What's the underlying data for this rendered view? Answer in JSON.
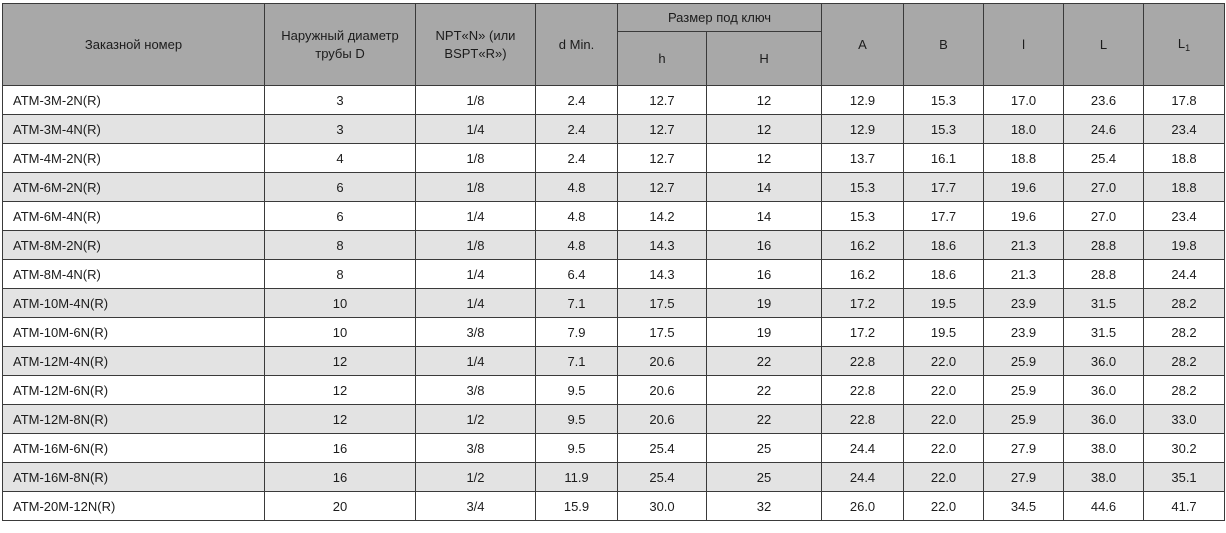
{
  "colors": {
    "header_bg": "#a8a8a8",
    "stripe_bg": "#e3e3e3",
    "row_bg": "#ffffff",
    "border_color": "#3a3a3a",
    "text_color": "#1c1c1c"
  },
  "table": {
    "header": {
      "order_number": "Заказной номер",
      "outer_diameter": "Наружный диаметр трубы D",
      "npt": "NPT«N» (или BSPT«R»)",
      "d_min": "d Min.",
      "wrench_size": "Размер под ключ",
      "h_small": "h",
      "h_big": "H",
      "a": "A",
      "b": "B",
      "l_small": "l",
      "l_big": "L",
      "l1_base": "L",
      "l1_sub": "1"
    },
    "column_keys": [
      "order-number",
      "outer-diameter-d",
      "npt",
      "d-min",
      "h-small",
      "h-big",
      "a",
      "b",
      "l-small",
      "l-big",
      "l1"
    ],
    "rows": [
      [
        "ATM-3M-2N(R)",
        "3",
        "1/8",
        "2.4",
        "12.7",
        "12",
        "12.9",
        "15.3",
        "17.0",
        "23.6",
        "17.8"
      ],
      [
        "ATM-3M-4N(R)",
        "3",
        "1/4",
        "2.4",
        "12.7",
        "12",
        "12.9",
        "15.3",
        "18.0",
        "24.6",
        "23.4"
      ],
      [
        "ATM-4M-2N(R)",
        "4",
        "1/8",
        "2.4",
        "12.7",
        "12",
        "13.7",
        "16.1",
        "18.8",
        "25.4",
        "18.8"
      ],
      [
        "ATM-6M-2N(R)",
        "6",
        "1/8",
        "4.8",
        "12.7",
        "14",
        "15.3",
        "17.7",
        "19.6",
        "27.0",
        "18.8"
      ],
      [
        "ATM-6M-4N(R)",
        "6",
        "1/4",
        "4.8",
        "14.2",
        "14",
        "15.3",
        "17.7",
        "19.6",
        "27.0",
        "23.4"
      ],
      [
        "ATM-8M-2N(R)",
        "8",
        "1/8",
        "4.8",
        "14.3",
        "16",
        "16.2",
        "18.6",
        "21.3",
        "28.8",
        "19.8"
      ],
      [
        "ATM-8M-4N(R)",
        "8",
        "1/4",
        "6.4",
        "14.3",
        "16",
        "16.2",
        "18.6",
        "21.3",
        "28.8",
        "24.4"
      ],
      [
        "ATM-10M-4N(R)",
        "10",
        "1/4",
        "7.1",
        "17.5",
        "19",
        "17.2",
        "19.5",
        "23.9",
        "31.5",
        "28.2"
      ],
      [
        "ATM-10M-6N(R)",
        "10",
        "3/8",
        "7.9",
        "17.5",
        "19",
        "17.2",
        "19.5",
        "23.9",
        "31.5",
        "28.2"
      ],
      [
        "ATM-12M-4N(R)",
        "12",
        "1/4",
        "7.1",
        "20.6",
        "22",
        "22.8",
        "22.0",
        "25.9",
        "36.0",
        "28.2"
      ],
      [
        "ATM-12M-6N(R)",
        "12",
        "3/8",
        "9.5",
        "20.6",
        "22",
        "22.8",
        "22.0",
        "25.9",
        "36.0",
        "28.2"
      ],
      [
        "ATM-12M-8N(R)",
        "12",
        "1/2",
        "9.5",
        "20.6",
        "22",
        "22.8",
        "22.0",
        "25.9",
        "36.0",
        "33.0"
      ],
      [
        "ATM-16M-6N(R)",
        "16",
        "3/8",
        "9.5",
        "25.4",
        "25",
        "24.4",
        "22.0",
        "27.9",
        "38.0",
        "30.2"
      ],
      [
        "ATM-16M-8N(R)",
        "16",
        "1/2",
        "11.9",
        "25.4",
        "25",
        "24.4",
        "22.0",
        "27.9",
        "38.0",
        "35.1"
      ],
      [
        "ATM-20M-12N(R)",
        "20",
        "3/4",
        "15.9",
        "30.0",
        "32",
        "26.0",
        "22.0",
        "34.5",
        "44.6",
        "41.7"
      ]
    ]
  }
}
